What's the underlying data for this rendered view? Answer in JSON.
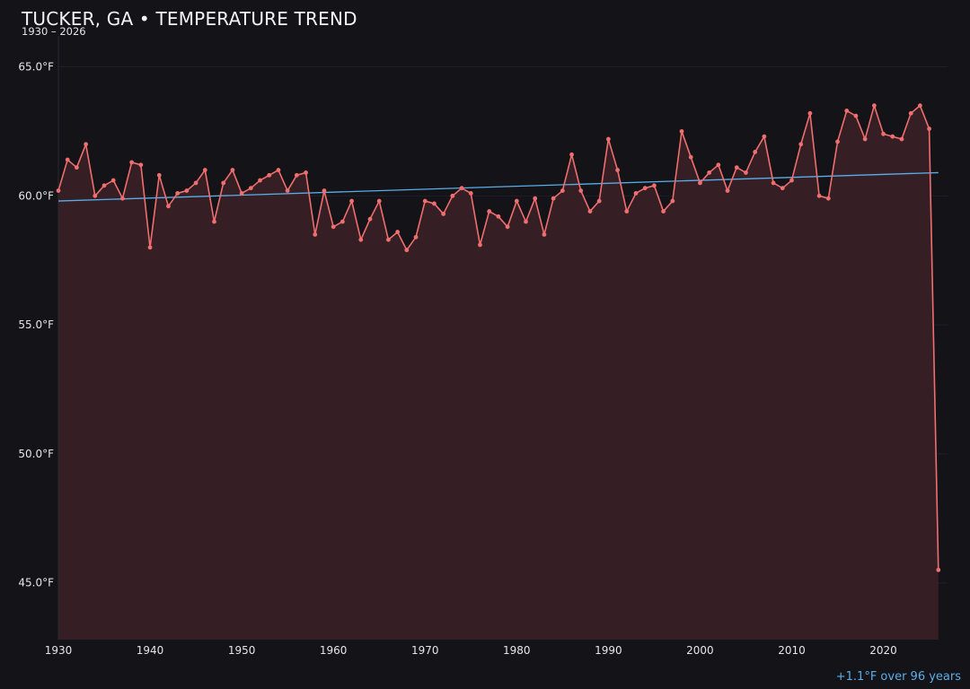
{
  "header": {
    "title": "TUCKER, GA • TEMPERATURE TREND",
    "subtitle": "1930 – 2026"
  },
  "annotation": "+1.1°F over 96 years",
  "colors": {
    "background": "#131318",
    "series_line": "#f06e6e",
    "series_fill": "#351f25",
    "trend_line": "#5aaee8",
    "grid": "#1f1f26",
    "text": "#f2f2f4"
  },
  "chart_data": {
    "type": "line",
    "title": "TUCKER, GA • TEMPERATURE TREND",
    "subtitle": "1930 – 2026",
    "xlabel": "",
    "ylabel": "",
    "xlim": [
      1930,
      2027
    ],
    "ylim": [
      42.8,
      66.2
    ],
    "x_ticks": [
      1930,
      1940,
      1950,
      1960,
      1970,
      1980,
      1990,
      2000,
      2010,
      2020
    ],
    "x_tick_labels": [
      "1930",
      "1940",
      "1950",
      "1960",
      "1970",
      "1980",
      "1990",
      "2000",
      "2010",
      "2020"
    ],
    "y_ticks": [
      45,
      50,
      55,
      60,
      65
    ],
    "y_tick_labels": [
      "45.0°F",
      "50.0°F",
      "55.0°F",
      "60.0°F",
      "65.0°F"
    ],
    "grid": true,
    "area_fill": true,
    "series": [
      {
        "x": [
          1930,
          1931,
          1932,
          1933,
          1934,
          1935,
          1936,
          1937,
          1938,
          1939,
          1940,
          1941,
          1942,
          1943,
          1944,
          1945,
          1946,
          1947,
          1948,
          1949,
          1950,
          1951,
          1952,
          1953,
          1954,
          1955,
          1956,
          1957,
          1958,
          1959,
          1960,
          1961,
          1962,
          1963,
          1964,
          1965,
          1966,
          1967,
          1968,
          1969,
          1970,
          1971,
          1972,
          1973,
          1974,
          1975,
          1976,
          1977,
          1978,
          1979,
          1980,
          1981,
          1982,
          1983,
          1984,
          1985,
          1986,
          1987,
          1988,
          1989,
          1990,
          1991,
          1992,
          1993,
          1994,
          1995,
          1996,
          1997,
          1998,
          1999,
          2000,
          2001,
          2002,
          2003,
          2004,
          2005,
          2006,
          2007,
          2008,
          2009,
          2010,
          2011,
          2012,
          2013,
          2014,
          2015,
          2016,
          2017,
          2018,
          2019,
          2020,
          2021,
          2022,
          2023,
          2024,
          2025,
          2026
        ],
        "values": [
          60.2,
          61.4,
          61.1,
          62.0,
          60.0,
          60.4,
          60.6,
          59.9,
          61.3,
          61.2,
          58.0,
          60.8,
          59.6,
          60.1,
          60.2,
          60.5,
          61.0,
          59.0,
          60.5,
          61.0,
          60.1,
          60.3,
          60.6,
          60.8,
          61.0,
          60.2,
          60.8,
          60.9,
          58.5,
          60.2,
          58.8,
          59.0,
          59.8,
          58.3,
          59.1,
          59.8,
          58.3,
          58.6,
          57.9,
          58.4,
          59.8,
          59.7,
          59.3,
          60.0,
          60.3,
          60.1,
          58.1,
          59.4,
          59.2,
          58.8,
          59.8,
          59.0,
          59.9,
          58.5,
          59.9,
          60.2,
          61.6,
          60.2,
          59.4,
          59.8,
          62.2,
          61.0,
          59.4,
          60.1,
          60.3,
          60.4,
          59.4,
          59.8,
          62.5,
          61.5,
          60.5,
          60.9,
          61.2,
          60.2,
          61.1,
          60.9,
          61.7,
          62.3,
          60.5,
          60.3,
          60.6,
          62.0,
          63.2,
          60.0,
          59.9,
          62.1,
          63.3,
          63.1,
          62.2,
          63.5,
          62.4,
          62.3,
          62.2,
          63.2,
          63.5,
          62.6,
          45.5
        ]
      }
    ],
    "trend": {
      "x": [
        1930,
        2026
      ],
      "values": [
        59.8,
        60.9
      ]
    }
  }
}
